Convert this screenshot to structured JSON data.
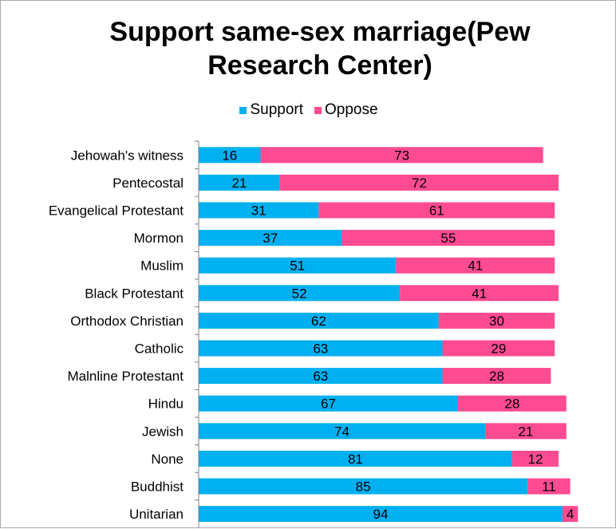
{
  "colors": {
    "support": "#00b0f0",
    "oppose": "#ff4b91",
    "axis": "#808080",
    "text": "#000000"
  },
  "chart_data": {
    "type": "bar",
    "orientation": "horizontal",
    "stacked": true,
    "title": "Support same-sex marriage(Pew Research Center)",
    "title_lines": [
      "Support same-sex marriage(Pew",
      "Research Center)"
    ],
    "xlabel": "",
    "ylabel": "",
    "xlim": [
      0,
      100
    ],
    "grid": false,
    "legend_position": "top",
    "categories": [
      "Jehowah's witness",
      "Pentecostal",
      "Evangelical Protestant",
      "Mormon",
      "Muslim",
      "Black Protestant",
      "Orthodox Christian",
      "Catholic",
      "Malnline Protestant",
      "Hindu",
      "Jewish",
      "None",
      "Buddhist",
      "Unitarian"
    ],
    "series": [
      {
        "name": "Support",
        "color": "#00b0f0",
        "values": [
          16,
          21,
          31,
          37,
          51,
          52,
          62,
          63,
          63,
          67,
          74,
          81,
          85,
          94
        ]
      },
      {
        "name": "Oppose",
        "color": "#ff4b91",
        "values": [
          73,
          72,
          61,
          55,
          41,
          41,
          30,
          29,
          28,
          28,
          21,
          12,
          11,
          4
        ]
      }
    ]
  }
}
